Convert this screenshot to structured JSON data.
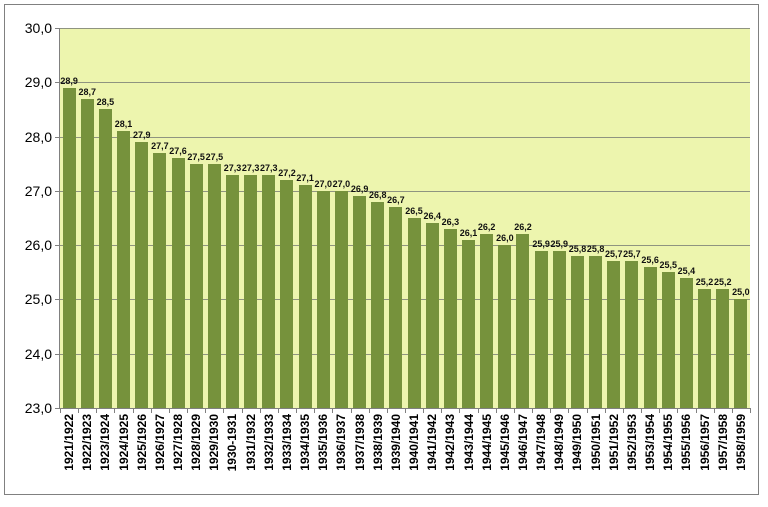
{
  "chart_data": {
    "type": "bar",
    "title": "",
    "xlabel": "",
    "ylabel": "",
    "categories": [
      "1921/1922",
      "1922/1923",
      "1923/1924",
      "1924/1925",
      "1925/1926",
      "1926/1927",
      "1927/1928",
      "1928/1929",
      "1929/1930",
      "1930-1931",
      "1931/1932",
      "1932/1933",
      "1933/1934",
      "1934/1935",
      "1935/1936",
      "1936/1937",
      "1937/1938",
      "1938/1939",
      "1939/1940",
      "1940/1941",
      "1941/1942",
      "1942/1943",
      "1943/1944",
      "1944/1945",
      "1945/1946",
      "1946/1947",
      "1947/1948",
      "1948/1949",
      "1949/1950",
      "1950/1951",
      "1951/1952",
      "1952/1953",
      "1953/1954",
      "1954/1955",
      "1955/1956",
      "1956/1957",
      "1957/1958",
      "1958/1959"
    ],
    "values": [
      28.9,
      28.7,
      28.5,
      28.1,
      27.9,
      27.7,
      27.6,
      27.5,
      27.5,
      27.3,
      27.3,
      27.3,
      27.2,
      27.1,
      27.0,
      27.0,
      26.9,
      26.8,
      26.7,
      26.5,
      26.4,
      26.3,
      26.1,
      26.2,
      26.0,
      26.2,
      25.9,
      25.9,
      25.8,
      25.8,
      25.7,
      25.7,
      25.6,
      25.5,
      25.4,
      25.2,
      25.2,
      25.0
    ],
    "data_labels_visible": true,
    "decimal_separator": ",",
    "ylim": [
      23,
      30
    ],
    "ytick_step": 1,
    "ytick_labels": [
      "30,0",
      "29,0",
      "28,0",
      "27,0",
      "26,0",
      "25,0",
      "24,0",
      "23,0"
    ],
    "grid": true,
    "legend": "none",
    "colors": {
      "bar": "#76923C",
      "plot_background": "#EDF5AE",
      "gridline": "#8f9480",
      "axis": "#808080",
      "frame_border": "#808080",
      "text": "#000000"
    }
  }
}
